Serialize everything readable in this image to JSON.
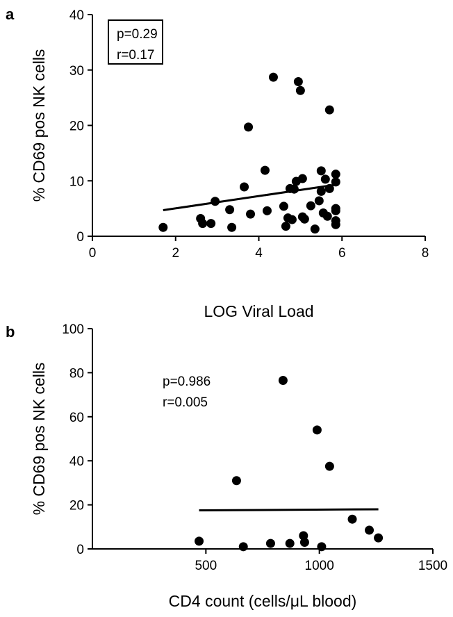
{
  "chart_data": [
    {
      "type": "scatter",
      "panel_label": "a",
      "xlabel": "LOG Viral Load",
      "ylabel": "% CD69 pos NK cells",
      "xlim": [
        0,
        8
      ],
      "ylim": [
        0,
        40
      ],
      "xticks": [
        0,
        2,
        4,
        6,
        8
      ],
      "yticks": [
        0,
        10,
        20,
        30,
        40
      ],
      "stats": [
        "p=0.29",
        "r=0.17"
      ],
      "stats_boxed": true,
      "grid": false,
      "marker_color": "#000000",
      "points": [
        [
          1.7,
          1.6
        ],
        [
          2.6,
          3.2
        ],
        [
          2.65,
          2.3
        ],
        [
          2.85,
          2.3
        ],
        [
          2.95,
          6.3
        ],
        [
          3.3,
          4.8
        ],
        [
          3.35,
          1.6
        ],
        [
          3.65,
          8.9
        ],
        [
          3.75,
          19.7
        ],
        [
          3.8,
          4.0
        ],
        [
          4.15,
          11.9
        ],
        [
          4.2,
          4.6
        ],
        [
          4.35,
          28.7
        ],
        [
          4.6,
          5.4
        ],
        [
          4.65,
          1.8
        ],
        [
          4.7,
          3.3
        ],
        [
          4.75,
          8.6
        ],
        [
          4.8,
          3.0
        ],
        [
          4.85,
          8.5
        ],
        [
          4.9,
          9.9
        ],
        [
          4.95,
          27.9
        ],
        [
          5.0,
          26.3
        ],
        [
          5.05,
          10.4
        ],
        [
          5.05,
          3.5
        ],
        [
          5.1,
          3.1
        ],
        [
          5.25,
          5.5
        ],
        [
          5.35,
          1.3
        ],
        [
          5.45,
          6.4
        ],
        [
          5.5,
          8.1
        ],
        [
          5.5,
          11.8
        ],
        [
          5.55,
          4.2
        ],
        [
          5.6,
          10.3
        ],
        [
          5.65,
          3.6
        ],
        [
          5.7,
          8.6
        ],
        [
          5.7,
          22.8
        ],
        [
          5.85,
          9.8
        ],
        [
          5.85,
          11.2
        ],
        [
          5.85,
          5.0
        ],
        [
          5.85,
          4.6
        ],
        [
          5.85,
          2.8
        ],
        [
          5.85,
          2.1
        ]
      ],
      "fit_line": [
        [
          1.7,
          4.7
        ],
        [
          5.85,
          9.3
        ]
      ]
    },
    {
      "type": "scatter",
      "panel_label": "b",
      "xlabel": "CD4 count (cells/μL blood)",
      "ylabel": "% CD69 pos NK cells",
      "xlim": [
        0,
        1500
      ],
      "ylim": [
        0,
        100
      ],
      "xticks": [
        500,
        1000,
        1500
      ],
      "yticks": [
        0,
        20,
        40,
        60,
        80,
        100
      ],
      "stats": [
        "p=0.986",
        "r=0.005"
      ],
      "stats_boxed": false,
      "grid": false,
      "marker_color": "#000000",
      "points": [
        [
          470,
          3.5
        ],
        [
          635,
          31
        ],
        [
          665,
          1
        ],
        [
          785,
          2.5
        ],
        [
          840,
          76.5
        ],
        [
          870,
          2.5
        ],
        [
          930,
          6
        ],
        [
          935,
          3
        ],
        [
          990,
          54
        ],
        [
          1010,
          1
        ],
        [
          1045,
          37.5
        ],
        [
          1145,
          13.5
        ],
        [
          1220,
          8.5
        ],
        [
          1260,
          5
        ]
      ],
      "fit_line": [
        [
          470,
          17.5
        ],
        [
          1260,
          18
        ]
      ]
    }
  ]
}
